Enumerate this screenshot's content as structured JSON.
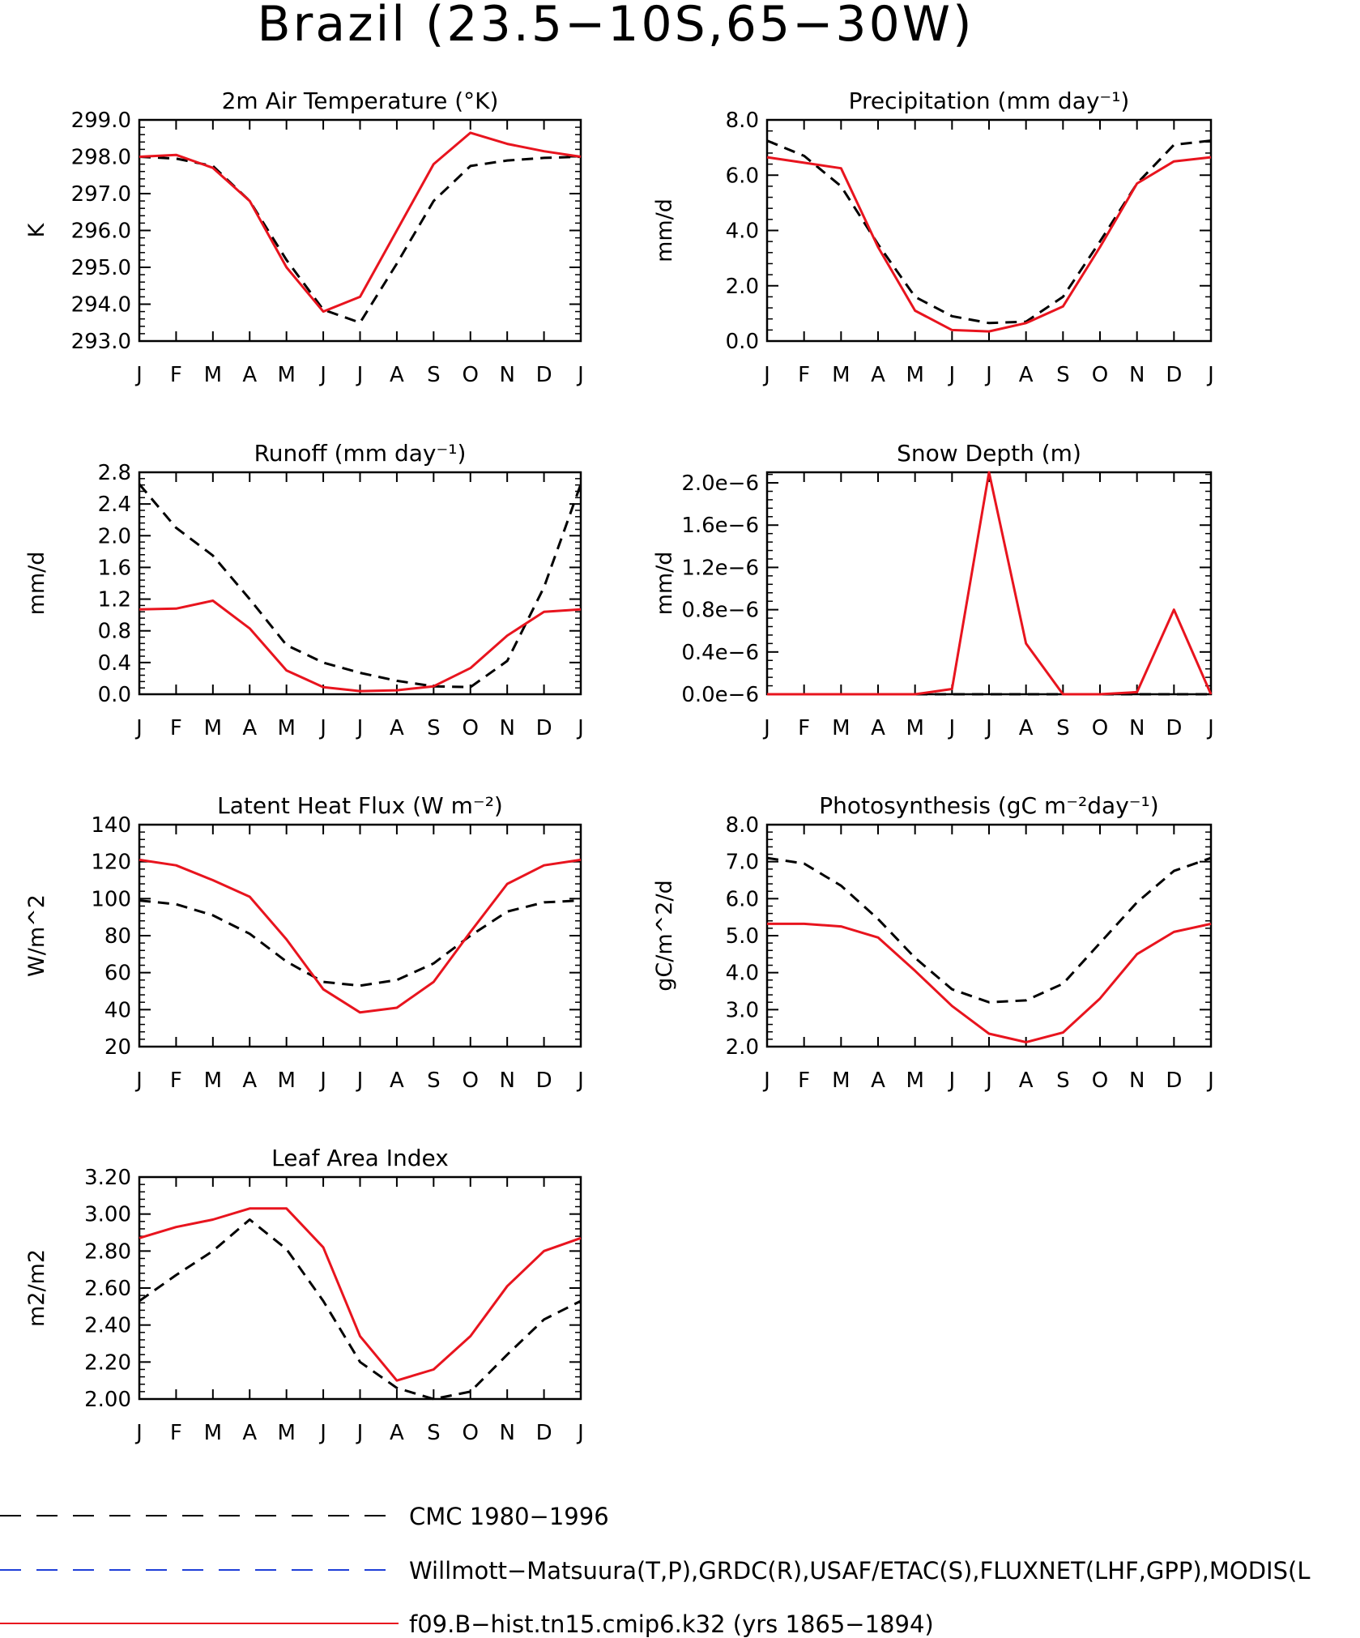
{
  "title": "Brazil (23.5−10S,65−30W)",
  "months": [
    "J",
    "F",
    "M",
    "A",
    "M",
    "J",
    "J",
    "A",
    "S",
    "O",
    "N",
    "D",
    "J"
  ],
  "colors": {
    "obs": "#000000",
    "obs2": "#1f3fd8",
    "model": "#e8141e"
  },
  "legend": [
    {
      "label": "CMC 1980−1996",
      "color": "#000000",
      "style": "dashed"
    },
    {
      "label": "Willmott−Matsuura(T,P),GRDC(R),USAF/ETAC(S),FLUXNET(LHF,GPP),MODIS(L",
      "color": "#1f3fd8",
      "style": "dashed"
    },
    {
      "label": "f09.B−hist.tn15.cmip6.k32 (yrs 1865−1894)",
      "color": "#e8141e",
      "style": "solid"
    }
  ],
  "chart_data": [
    {
      "type": "line",
      "title": "2m Air Temperature (°K)",
      "ylabel": "K",
      "ylim": [
        293.0,
        299.0
      ],
      "yticks": [
        293.0,
        294.0,
        295.0,
        296.0,
        297.0,
        298.0,
        299.0
      ],
      "ytick_labels": [
        "293.0",
        "294.0",
        "295.0",
        "296.0",
        "297.0",
        "298.0",
        "299.0"
      ],
      "series": [
        {
          "name": "CMC 1980−1996",
          "role": "obs",
          "values": [
            298.0,
            297.95,
            297.75,
            296.8,
            295.2,
            293.85,
            293.5,
            295.1,
            296.8,
            297.75,
            297.9,
            297.97,
            298.0
          ]
        },
        {
          "name": "f09.B−hist.tn15.cmip6.k32 (yrs 1865−1894)",
          "role": "model",
          "values": [
            298.0,
            298.05,
            297.7,
            296.8,
            295.0,
            293.8,
            294.2,
            296.0,
            297.8,
            298.65,
            298.35,
            298.15,
            298.0
          ]
        }
      ]
    },
    {
      "type": "line",
      "title": "Precipitation (mm day⁻¹)",
      "ylabel": "mm/d",
      "ylim": [
        0.0,
        8.0
      ],
      "yticks": [
        0.0,
        2.0,
        4.0,
        6.0,
        8.0
      ],
      "ytick_labels": [
        "0.0",
        "2.0",
        "4.0",
        "6.0",
        "8.0"
      ],
      "series": [
        {
          "name": "CMC 1980−1996",
          "role": "obs",
          "values": [
            7.25,
            6.7,
            5.6,
            3.5,
            1.6,
            0.9,
            0.65,
            0.7,
            1.6,
            3.6,
            5.7,
            7.1,
            7.25
          ]
        },
        {
          "name": "f09.B−hist.tn15.cmip6.k32 (yrs 1865−1894)",
          "role": "model",
          "values": [
            6.65,
            6.45,
            6.25,
            3.4,
            1.1,
            0.4,
            0.35,
            0.65,
            1.25,
            3.4,
            5.7,
            6.5,
            6.65
          ]
        }
      ]
    },
    {
      "type": "line",
      "title": "Runoff (mm day⁻¹)",
      "ylabel": "mm/d",
      "ylim": [
        0.0,
        2.8
      ],
      "yticks": [
        0.0,
        0.4,
        0.8,
        1.2,
        1.6,
        2.0,
        2.4,
        2.8
      ],
      "ytick_labels": [
        "0.0",
        "0.4",
        "0.8",
        "1.2",
        "1.6",
        "2.0",
        "2.4",
        "2.8"
      ],
      "series": [
        {
          "name": "CMC 1980−1996",
          "role": "obs",
          "values": [
            2.65,
            2.1,
            1.75,
            1.2,
            0.62,
            0.4,
            0.27,
            0.17,
            0.1,
            0.09,
            0.42,
            1.35,
            2.65
          ]
        },
        {
          "name": "f09.B−hist.tn15.cmip6.k32 (yrs 1865−1894)",
          "role": "model",
          "values": [
            1.07,
            1.08,
            1.18,
            0.83,
            0.3,
            0.09,
            0.04,
            0.05,
            0.1,
            0.33,
            0.74,
            1.04,
            1.07
          ]
        }
      ]
    },
    {
      "type": "line",
      "title": "Snow Depth (m)",
      "ylabel": "mm/d",
      "ylim": [
        0.0,
        2.1
      ],
      "yticks": [
        0.0,
        0.4,
        0.8,
        1.2,
        1.6,
        2.0
      ],
      "ytick_labels": [
        "0.0e−6",
        "0.4e−6",
        "0.8e−6",
        "1.2e−6",
        "1.6e−6",
        "2.0e−6"
      ],
      "series": [
        {
          "name": "CMC 1980−1996",
          "role": "obs",
          "values": [
            0,
            0,
            0,
            0,
            0,
            0,
            0,
            0,
            0,
            0,
            0,
            0,
            0
          ]
        },
        {
          "name": "f09.B−hist.tn15.cmip6.k32 (yrs 1865−1894)",
          "role": "model",
          "values": [
            0,
            0,
            0,
            0,
            0,
            0.05,
            2.1,
            0.48,
            0,
            0,
            0.02,
            0.8,
            0
          ]
        }
      ]
    },
    {
      "type": "line",
      "title": "Latent Heat Flux (W m⁻²)",
      "ylabel": "W/m^2",
      "ylim": [
        20,
        140
      ],
      "yticks": [
        20,
        40,
        60,
        80,
        100,
        120,
        140
      ],
      "ytick_labels": [
        "20",
        "40",
        "60",
        "80",
        "100",
        "120",
        "140"
      ],
      "series": [
        {
          "name": "CMC 1980−1996",
          "role": "obs",
          "values": [
            99,
            97,
            91,
            81,
            66,
            55,
            53,
            56,
            65,
            80,
            93,
            98,
            99
          ]
        },
        {
          "name": "f09.B−hist.tn15.cmip6.k32 (yrs 1865−1894)",
          "role": "model",
          "values": [
            121,
            118,
            110,
            101,
            78,
            51,
            38.5,
            41,
            55,
            82,
            108,
            118,
            121
          ]
        }
      ]
    },
    {
      "type": "line",
      "title": "Photosynthesis (gC m⁻²day⁻¹)",
      "ylabel": "gC/m^2/d",
      "ylim": [
        2.0,
        8.0
      ],
      "yticks": [
        2.0,
        3.0,
        4.0,
        5.0,
        6.0,
        7.0,
        8.0
      ],
      "ytick_labels": [
        "2.0",
        "3.0",
        "4.0",
        "5.0",
        "6.0",
        "7.0",
        "8.0"
      ],
      "series": [
        {
          "name": "CMC 1980−1996",
          "role": "obs",
          "values": [
            7.1,
            6.95,
            6.35,
            5.45,
            4.4,
            3.55,
            3.2,
            3.25,
            3.7,
            4.8,
            5.9,
            6.75,
            7.1
          ]
        },
        {
          "name": "f09.B−hist.tn15.cmip6.k32 (yrs 1865−1894)",
          "role": "model",
          "values": [
            5.32,
            5.32,
            5.25,
            4.95,
            4.05,
            3.1,
            2.35,
            2.12,
            2.38,
            3.3,
            4.5,
            5.1,
            5.32
          ]
        }
      ]
    },
    {
      "type": "line",
      "title": "Leaf Area Index",
      "ylabel": "m2/m2",
      "ylim": [
        2.0,
        3.2
      ],
      "yticks": [
        2.0,
        2.2,
        2.4,
        2.6,
        2.8,
        3.0,
        3.2
      ],
      "ytick_labels": [
        "2.00",
        "2.20",
        "2.40",
        "2.60",
        "2.80",
        "3.00",
        "3.20"
      ],
      "series": [
        {
          "name": "CMC 1980−1996",
          "role": "obs",
          "values": [
            2.53,
            2.67,
            2.8,
            2.97,
            2.81,
            2.53,
            2.2,
            2.06,
            2.0,
            2.04,
            2.24,
            2.43,
            2.53
          ]
        },
        {
          "name": "f09.B−hist.tn15.cmip6.k32 (yrs 1865−1894)",
          "role": "model",
          "values": [
            2.87,
            2.93,
            2.97,
            3.03,
            3.03,
            2.82,
            2.34,
            2.1,
            2.16,
            2.34,
            2.61,
            2.8,
            2.87
          ]
        }
      ]
    }
  ]
}
